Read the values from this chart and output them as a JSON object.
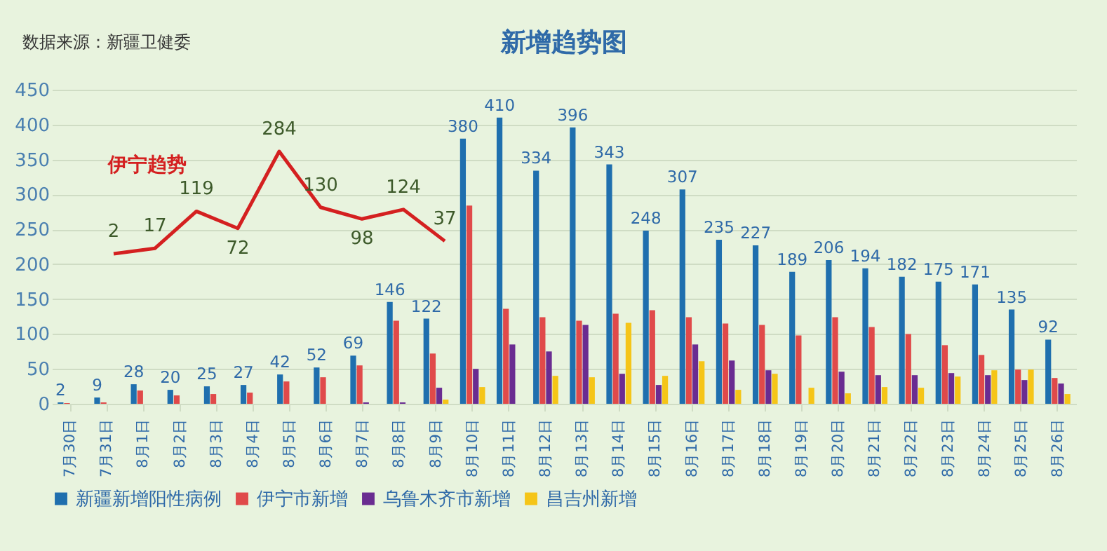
{
  "chart_data": [
    {
      "type": "bar",
      "title": "新增趋势图",
      "annotations": [
        "数据来源：新疆卫健委"
      ],
      "categories": [
        "7月30日",
        "7月31日",
        "8月1日",
        "8月2日",
        "8月3日",
        "8月4日",
        "8月5日",
        "8月6日",
        "8月7日",
        "8月8日",
        "8月9日",
        "8月10日",
        "8月11日",
        "8月12日",
        "8月13日",
        "8月14日",
        "8月15日",
        "8月16日",
        "8月17日",
        "8月18日",
        "8月19日",
        "8月20日",
        "8月21日",
        "8月22日",
        "8月23日",
        "8月24日",
        "8月25日",
        "8月26日"
      ],
      "series": [
        {
          "name": "新疆新增阳性病例",
          "color": "#1f6fae",
          "values": [
            2,
            9,
            28,
            20,
            25,
            27,
            42,
            52,
            69,
            146,
            122,
            380,
            410,
            334,
            396,
            343,
            248,
            307,
            235,
            227,
            189,
            206,
            194,
            182,
            175,
            171,
            135,
            92
          ],
          "value_labels": [
            "2",
            "9",
            "28",
            "20",
            "25",
            "27",
            "42",
            "52",
            "69",
            "146",
            "122",
            "380",
            "410",
            "334",
            "396",
            "343",
            "248",
            "307",
            "235",
            "227",
            "189",
            "206",
            "194",
            "182",
            "175",
            "171",
            "135",
            "92"
          ]
        },
        {
          "name": "伊宁市新增",
          "color": "#e04a4a",
          "values": [
            1,
            2,
            19,
            12,
            14,
            16,
            32,
            38,
            55,
            119,
            72,
            284,
            136,
            124,
            119,
            129,
            134,
            124,
            115,
            113,
            98,
            124,
            110,
            100,
            84,
            70,
            49,
            37
          ]
        },
        {
          "name": "乌鲁木齐市新增",
          "color": "#6a2c91",
          "values": [
            0,
            0,
            0,
            0,
            0,
            0,
            0,
            0,
            2,
            2,
            23,
            50,
            85,
            75,
            113,
            43,
            27,
            85,
            62,
            48,
            0,
            46,
            41,
            41,
            44,
            41,
            34,
            29
          ]
        },
        {
          "name": "昌吉州新增",
          "color": "#f5c518",
          "values": [
            0,
            0,
            0,
            0,
            0,
            0,
            0,
            0,
            0,
            0,
            6,
            24,
            0,
            40,
            38,
            116,
            40,
            61,
            20,
            43,
            23,
            15,
            24,
            23,
            39,
            48,
            49,
            14
          ]
        }
      ],
      "ylim": [
        0,
        450
      ],
      "yticks": [
        0,
        50,
        100,
        150,
        200,
        250,
        300,
        350,
        400,
        450
      ],
      "grid": "y",
      "legend": "bottom"
    },
    {
      "type": "line",
      "categories": [
        null,
        null,
        null,
        null,
        null,
        null,
        null,
        null,
        null
      ],
      "series": [
        {
          "name": "伊宁趋势",
          "color": "#d42020",
          "values": [
            2,
            17,
            119,
            72,
            284,
            130,
            98,
            124,
            37
          ]
        }
      ],
      "data_labels": true,
      "tick_labels": false
    }
  ]
}
